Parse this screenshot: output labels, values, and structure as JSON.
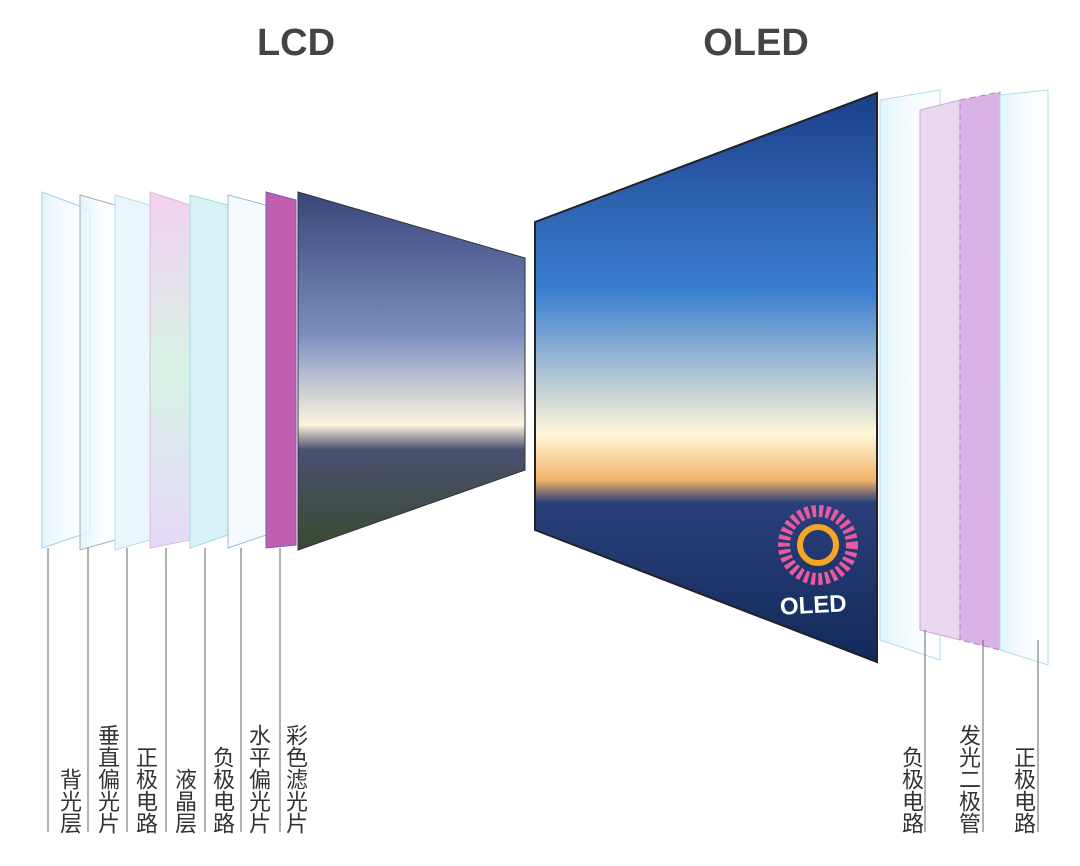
{
  "lcd": {
    "title": "LCD",
    "layers": [
      "背光层",
      "垂直偏光片",
      "正极电路",
      "液晶层",
      "负极电路",
      "水平偏光片",
      "彩色滤光片"
    ]
  },
  "oled": {
    "title": "OLED",
    "logo": "OLED",
    "layers": [
      "负极电路",
      "发光二极管",
      "正极电路"
    ]
  }
}
